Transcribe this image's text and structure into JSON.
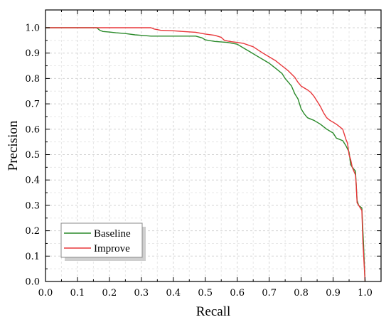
{
  "chart_data": {
    "type": "line",
    "title": "",
    "xlabel": "Recall",
    "ylabel": "Precision",
    "xlim": [
      0.0,
      1.05
    ],
    "ylim": [
      0.0,
      1.07
    ],
    "xticks": [
      "0.0",
      "0.1",
      "0.2",
      "0.3",
      "0.4",
      "0.5",
      "0.6",
      "0.7",
      "0.8",
      "0.9",
      "1.0"
    ],
    "yticks": [
      "0.0",
      "0.1",
      "0.2",
      "0.3",
      "0.4",
      "0.5",
      "0.6",
      "0.7",
      "0.8",
      "0.9",
      "1.0"
    ],
    "grid": true,
    "legend_position": "bottom-left",
    "series": [
      {
        "name": "Baseline",
        "color": "#2a8a2a",
        "points": [
          [
            0.0,
            1.0
          ],
          [
            0.16,
            1.0
          ],
          [
            0.17,
            0.99
          ],
          [
            0.18,
            0.985
          ],
          [
            0.2,
            0.983
          ],
          [
            0.22,
            0.98
          ],
          [
            0.25,
            0.977
          ],
          [
            0.28,
            0.972
          ],
          [
            0.3,
            0.97
          ],
          [
            0.33,
            0.967
          ],
          [
            0.4,
            0.967
          ],
          [
            0.47,
            0.967
          ],
          [
            0.49,
            0.96
          ],
          [
            0.5,
            0.952
          ],
          [
            0.53,
            0.946
          ],
          [
            0.57,
            0.942
          ],
          [
            0.6,
            0.935
          ],
          [
            0.62,
            0.92
          ],
          [
            0.64,
            0.905
          ],
          [
            0.66,
            0.89
          ],
          [
            0.68,
            0.875
          ],
          [
            0.7,
            0.86
          ],
          [
            0.72,
            0.84
          ],
          [
            0.74,
            0.82
          ],
          [
            0.75,
            0.8
          ],
          [
            0.76,
            0.785
          ],
          [
            0.77,
            0.77
          ],
          [
            0.78,
            0.74
          ],
          [
            0.79,
            0.72
          ],
          [
            0.8,
            0.68
          ],
          [
            0.81,
            0.66
          ],
          [
            0.82,
            0.645
          ],
          [
            0.84,
            0.635
          ],
          [
            0.86,
            0.62
          ],
          [
            0.88,
            0.6
          ],
          [
            0.9,
            0.585
          ],
          [
            0.91,
            0.565
          ],
          [
            0.93,
            0.555
          ],
          [
            0.94,
            0.535
          ],
          [
            0.95,
            0.51
          ],
          [
            0.955,
            0.46
          ],
          [
            0.96,
            0.45
          ],
          [
            0.97,
            0.435
          ],
          [
            0.972,
            0.39
          ],
          [
            0.975,
            0.32
          ],
          [
            0.98,
            0.3
          ],
          [
            0.99,
            0.29
          ],
          [
            0.995,
            0.15
          ],
          [
            1.0,
            0.0
          ]
        ]
      },
      {
        "name": "Improve",
        "color": "#e8373a",
        "points": [
          [
            0.0,
            1.0
          ],
          [
            0.33,
            1.0
          ],
          [
            0.34,
            0.995
          ],
          [
            0.36,
            0.99
          ],
          [
            0.4,
            0.988
          ],
          [
            0.43,
            0.985
          ],
          [
            0.47,
            0.982
          ],
          [
            0.5,
            0.975
          ],
          [
            0.53,
            0.97
          ],
          [
            0.55,
            0.962
          ],
          [
            0.56,
            0.95
          ],
          [
            0.58,
            0.945
          ],
          [
            0.6,
            0.942
          ],
          [
            0.62,
            0.938
          ],
          [
            0.65,
            0.925
          ],
          [
            0.68,
            0.9
          ],
          [
            0.7,
            0.885
          ],
          [
            0.72,
            0.87
          ],
          [
            0.74,
            0.85
          ],
          [
            0.76,
            0.83
          ],
          [
            0.78,
            0.805
          ],
          [
            0.79,
            0.785
          ],
          [
            0.8,
            0.77
          ],
          [
            0.82,
            0.755
          ],
          [
            0.83,
            0.745
          ],
          [
            0.84,
            0.73
          ],
          [
            0.85,
            0.71
          ],
          [
            0.86,
            0.69
          ],
          [
            0.87,
            0.665
          ],
          [
            0.88,
            0.645
          ],
          [
            0.89,
            0.635
          ],
          [
            0.91,
            0.62
          ],
          [
            0.92,
            0.61
          ],
          [
            0.93,
            0.6
          ],
          [
            0.94,
            0.56
          ],
          [
            0.945,
            0.545
          ],
          [
            0.95,
            0.5
          ],
          [
            0.955,
            0.48
          ],
          [
            0.96,
            0.45
          ],
          [
            0.97,
            0.42
          ],
          [
            0.972,
            0.39
          ],
          [
            0.975,
            0.31
          ],
          [
            0.98,
            0.3
          ],
          [
            0.99,
            0.28
          ],
          [
            0.993,
            0.16
          ],
          [
            1.0,
            0.0
          ]
        ]
      }
    ]
  }
}
